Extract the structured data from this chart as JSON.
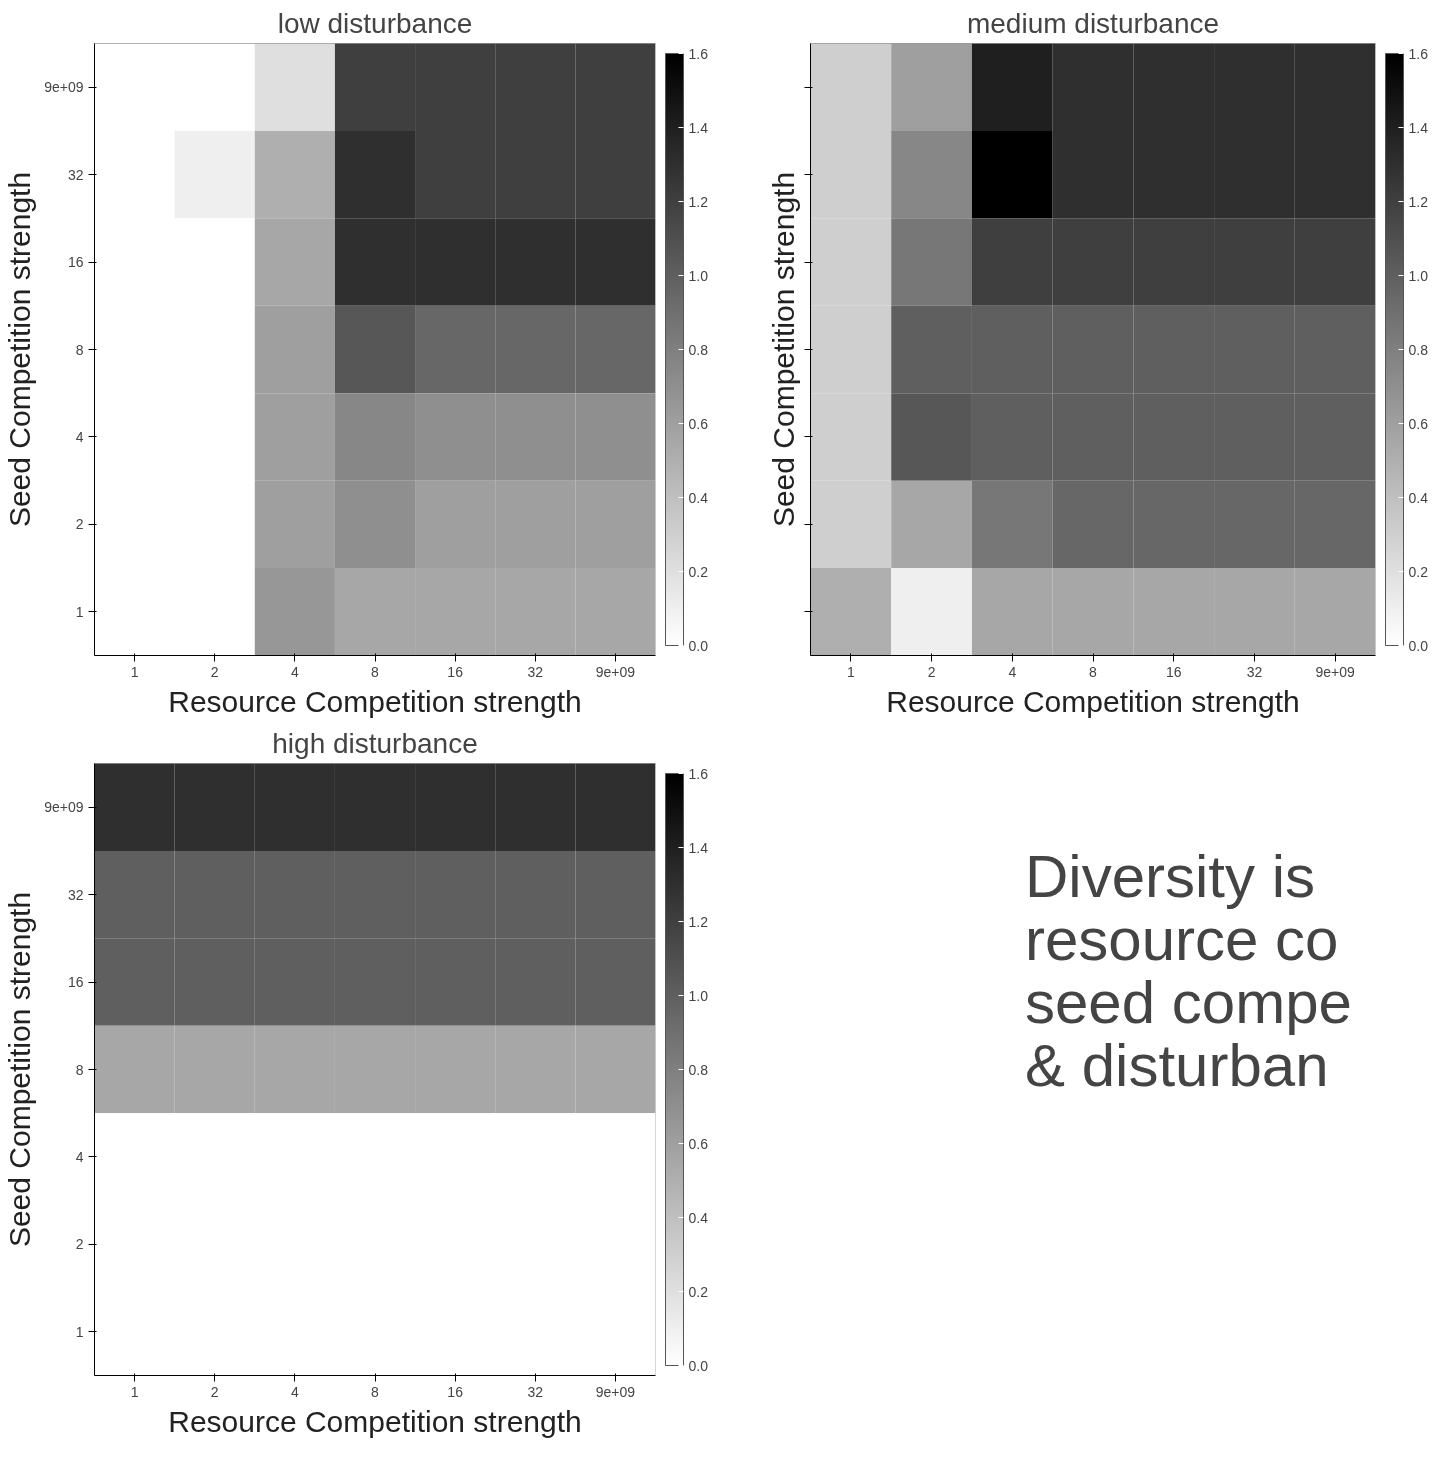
{
  "chart_data": [
    {
      "type": "heatmap",
      "title": "low disturbance",
      "xlabel": "Resource Competition strength",
      "ylabel": "Seed Competition strength",
      "categories": [
        "1",
        "2",
        "4",
        "8",
        "16",
        "32",
        "9e+09"
      ],
      "y_categories": [
        "9e+09",
        "32",
        "16",
        "8",
        "4",
        "2",
        "1"
      ],
      "cells": [
        [
          0,
          0,
          0.2,
          1.2,
          1.2,
          1.2,
          1.2
        ],
        [
          0,
          0.1,
          0.5,
          1.3,
          1.2,
          1.2,
          1.2
        ],
        [
          0,
          0,
          0.55,
          1.3,
          1.3,
          1.3,
          1.3
        ],
        [
          0,
          0,
          0.6,
          1.05,
          0.95,
          0.95,
          0.95
        ],
        [
          0,
          0,
          0.6,
          0.75,
          0.7,
          0.7,
          0.7
        ],
        [
          0,
          0,
          0.6,
          0.7,
          0.6,
          0.6,
          0.6
        ],
        [
          0,
          0,
          0.65,
          0.55,
          0.55,
          0.55,
          0.55
        ]
      ],
      "clim": [
        0,
        1.6
      ],
      "cticks": [
        {
          "value": 0,
          "label": "0.0"
        },
        {
          "value": 0.2,
          "label": "0.2"
        },
        {
          "value": 0.4,
          "label": "0.4"
        },
        {
          "value": 0.6,
          "label": "0.6"
        },
        {
          "value": 0.8,
          "label": "0.8"
        },
        {
          "value": 1,
          "label": "1.0"
        },
        {
          "value": 1.2,
          "label": "1.2"
        },
        {
          "value": 1.4,
          "label": "1.4"
        },
        {
          "value": 1.6,
          "label": "1.6"
        }
      ]
    },
    {
      "type": "heatmap",
      "title": "medium disturbance",
      "xlabel": "Resource Competition strength",
      "ylabel": "Seed Competition strength",
      "categories": [
        "1",
        "2",
        "4",
        "8",
        "16",
        "32",
        "9e+09"
      ],
      "y_categories": [
        null,
        null,
        null,
        null,
        null,
        null,
        null
      ],
      "tick_labels": "x",
      "cells": [
        [
          0.3,
          0.6,
          1.4,
          1.3,
          1.3,
          1.3,
          1.3
        ],
        [
          0.3,
          0.75,
          1.6,
          1.3,
          1.3,
          1.3,
          1.3
        ],
        [
          0.3,
          0.85,
          1.2,
          1.2,
          1.2,
          1.2,
          1.2
        ],
        [
          0.3,
          1.0,
          1.0,
          1.0,
          1.0,
          1.0,
          1.0
        ],
        [
          0.3,
          1.05,
          1.0,
          1.0,
          1.0,
          1.0,
          1.0
        ],
        [
          0.3,
          0.55,
          0.85,
          0.95,
          0.95,
          0.95,
          0.95
        ],
        [
          0.5,
          0.1,
          0.55,
          0.55,
          0.55,
          0.55,
          0.55
        ]
      ],
      "clim": [
        0,
        1.6
      ],
      "cticks": [
        {
          "value": 0,
          "label": "0.0"
        },
        {
          "value": 0.2,
          "label": "0.2"
        },
        {
          "value": 0.4,
          "label": "0.4"
        },
        {
          "value": 0.6,
          "label": "0.6"
        },
        {
          "value": 0.8,
          "label": "0.8"
        },
        {
          "value": 1,
          "label": "1.0"
        },
        {
          "value": 1.2,
          "label": "1.2"
        },
        {
          "value": 1.4,
          "label": "1.4"
        },
        {
          "value": 1.6,
          "label": "1.6"
        }
      ]
    },
    {
      "type": "heatmap",
      "title": "high disturbance",
      "xlabel": "Resource Competition strength",
      "ylabel": "Seed Competition strength",
      "categories": [
        "1",
        "2",
        "4",
        "8",
        "16",
        "32",
        "9e+09"
      ],
      "y_categories": [
        "9e+09",
        "32",
        "16",
        "8",
        "4",
        "2",
        "1"
      ],
      "cells": [
        [
          1.3,
          1.3,
          1.3,
          1.3,
          1.3,
          1.3,
          1.3
        ],
        [
          1.0,
          1.0,
          1.0,
          1.0,
          1.0,
          1.0,
          1.0
        ],
        [
          1.0,
          1.0,
          1.0,
          1.0,
          1.0,
          1.0,
          1.0
        ],
        [
          0.55,
          0.55,
          0.55,
          0.55,
          0.55,
          0.55,
          0.55
        ],
        [
          0,
          0,
          0,
          0,
          0,
          0,
          0
        ],
        [
          0,
          0,
          0,
          0,
          0,
          0,
          0
        ],
        [
          0,
          0,
          0,
          0,
          0,
          0,
          0
        ]
      ],
      "clim": [
        0,
        1.6
      ],
      "cticks": [
        {
          "value": 0,
          "label": "0.0"
        },
        {
          "value": 0.2,
          "label": "0.2"
        },
        {
          "value": 0.4,
          "label": "0.4"
        },
        {
          "value": 0.6,
          "label": "0.6"
        },
        {
          "value": 0.8,
          "label": "0.8"
        },
        {
          "value": 1,
          "label": "1.0"
        },
        {
          "value": 1.2,
          "label": "1.2"
        },
        {
          "value": 1.4,
          "label": "1.4"
        },
        {
          "value": 1.6,
          "label": "1.6"
        }
      ]
    },
    {
      "type": "other",
      "annotations": [
        "Diversity is",
        "resource co",
        "seed compe",
        "& disturban"
      ]
    }
  ]
}
